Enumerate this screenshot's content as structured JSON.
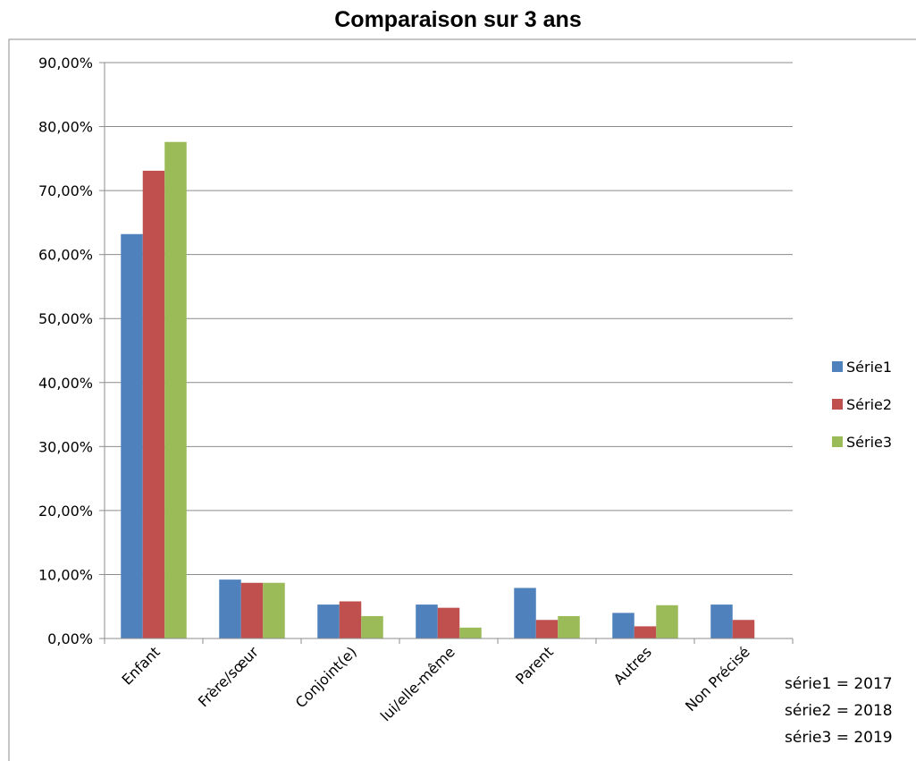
{
  "chart_data": {
    "type": "bar",
    "title": "Comparaison sur 3 ans",
    "xlabel": "",
    "ylabel": "",
    "categories": [
      "Enfant",
      "Frère/sœur",
      "Conjoint(e)",
      "lui/elle-même",
      "Parent",
      "Autres",
      "Non Précisé"
    ],
    "series": [
      {
        "name": "Série1",
        "color": "#4F81BD",
        "values": [
          63.2,
          9.2,
          5.3,
          5.3,
          7.9,
          4.0,
          5.3
        ]
      },
      {
        "name": "Série2",
        "color": "#C0504D",
        "values": [
          73.1,
          8.7,
          5.8,
          4.8,
          2.9,
          1.9,
          2.9
        ]
      },
      {
        "name": "Série3",
        "color": "#9BBB59",
        "values": [
          77.6,
          8.7,
          3.5,
          1.7,
          3.5,
          5.2,
          0
        ]
      }
    ],
    "ylim": [
      0,
      90
    ],
    "yticks": [
      "0,00%",
      "10,00%",
      "20,00%",
      "30,00%",
      "40,00%",
      "50,00%",
      "60,00%",
      "70,00%",
      "80,00%",
      "90,00%"
    ],
    "grid": true,
    "legend_position": "right",
    "notes": [
      "série1 = 2017",
      "série2 = 2018",
      "série3 = 2019"
    ]
  }
}
